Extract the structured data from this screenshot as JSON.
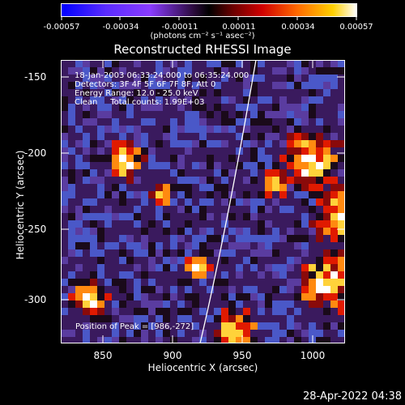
{
  "colorbar": {
    "ticks": [
      "-0.00057",
      "-0.00034",
      "-0.00011",
      "0.00011",
      "0.00034",
      "0.00057"
    ],
    "units": "(photons cm⁻² s⁻¹ asec⁻²)"
  },
  "title": "Reconstructed RHESSI Image",
  "info": {
    "time": "18-Jan-2003 06:33:24.000 to 06:35:24.000",
    "detectors": "Detectors: 3F 4F 5F 6F 7F 8F, Att 0",
    "energy": "Energy Range: 12.0 - 25.0 keV",
    "clean": "Clean     Total counts: 1.99E+03"
  },
  "peak": "Position of Peak = [986,-272]",
  "axes": {
    "x_label": "Heliocentric X (arcsec)",
    "y_label": "Heliocentric Y (arcsec)",
    "x_ticks": [
      "850",
      "900",
      "950",
      "1000"
    ],
    "y_ticks": [
      "-150",
      "-200",
      "-250",
      "-300"
    ]
  },
  "timestamp": "28-Apr-2022 04:38"
}
